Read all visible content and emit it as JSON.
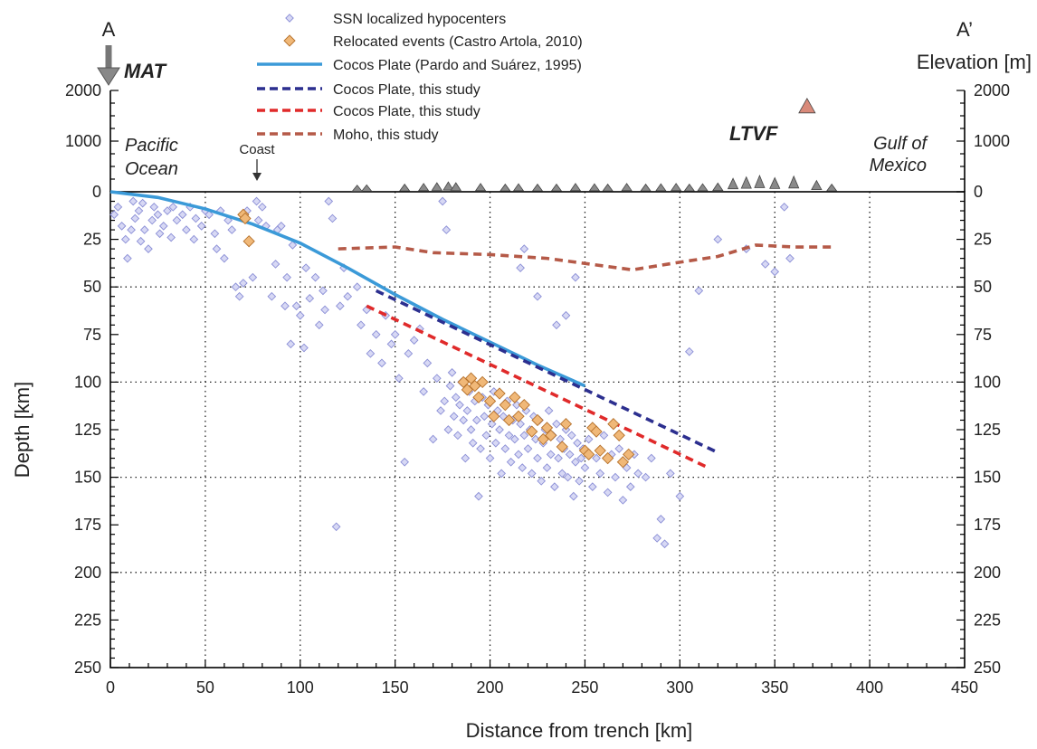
{
  "chart_data": {
    "type": "scatter",
    "xlabel": "Distance from trench [km]",
    "ylabel": "Depth [km]",
    "ylabel_right": "Elevation [m]",
    "xlim": [
      0,
      450
    ],
    "ylim": [
      0,
      250
    ],
    "elev_lim": [
      0,
      2000
    ],
    "x_ticks": [
      "0",
      "50",
      "100",
      "150",
      "200",
      "250",
      "300",
      "350",
      "400",
      "450"
    ],
    "y_ticks": [
      "0",
      "25",
      "50",
      "75",
      "100",
      "125",
      "150",
      "175",
      "200",
      "225",
      "250"
    ],
    "elev_ticks": [
      "0",
      "1000",
      "2000"
    ],
    "grid": true,
    "legend": [
      {
        "label": "SSN localized hypocenters",
        "marker": "diamond",
        "color": "#9a9ee0"
      },
      {
        "label": "Relocated events (Castro Artola, 2010)",
        "marker": "diamond",
        "color": "#e8a04a"
      },
      {
        "label": "Cocos Plate (Pardo and Suárez, 1995)",
        "marker": "line",
        "color": "#3b9ad8"
      },
      {
        "label": "Cocos Plate, this study",
        "marker": "dashed",
        "color": "#2c2f8f"
      },
      {
        "label": "Cocos Plate, this study",
        "marker": "dashed",
        "color": "#e02a2a"
      },
      {
        "label": "Moho, this study",
        "marker": "dashed",
        "color": "#b55a48"
      }
    ],
    "annotations": {
      "section_start": "A",
      "section_end": "A’",
      "mat": "MAT",
      "pacific": [
        "Pacific",
        "Ocean"
      ],
      "coast": "Coast",
      "ltvf": "LTVF",
      "gulf": [
        "Gulf of",
        "Mexico"
      ]
    },
    "series": [
      {
        "name": "Cocos Plate (Pardo and Suárez, 1995)",
        "color": "#3b9ad8",
        "style": "solid",
        "x": [
          0,
          25,
          50,
          75,
          100,
          125,
          150,
          175,
          200,
          225,
          250
        ],
        "y": [
          0,
          3,
          9,
          17,
          27,
          40,
          54,
          67,
          79,
          91,
          102
        ]
      },
      {
        "name": "Cocos Plate, this study",
        "color": "#2c2f8f",
        "style": "dashed",
        "x": [
          140,
          320
        ],
        "y": [
          52,
          137
        ]
      },
      {
        "name": "Cocos Plate, this study",
        "color": "#e02a2a",
        "style": "dashed",
        "x": [
          135,
          315
        ],
        "y": [
          60,
          145
        ]
      },
      {
        "name": "Moho, this study",
        "color": "#b55a48",
        "style": "dashed",
        "x": [
          120,
          150,
          170,
          200,
          230,
          260,
          275,
          300,
          320,
          340,
          360,
          380
        ],
        "y": [
          30,
          29,
          32,
          33,
          35,
          39,
          41,
          37,
          34,
          28,
          29,
          29
        ]
      }
    ],
    "ssn_hypocenters": [
      [
        2,
        12
      ],
      [
        4,
        8
      ],
      [
        6,
        18
      ],
      [
        8,
        25
      ],
      [
        9,
        35
      ],
      [
        11,
        20
      ],
      [
        12,
        5
      ],
      [
        13,
        14
      ],
      [
        15,
        10
      ],
      [
        16,
        26
      ],
      [
        17,
        6
      ],
      [
        18,
        20
      ],
      [
        20,
        30
      ],
      [
        22,
        15
      ],
      [
        23,
        8
      ],
      [
        25,
        12
      ],
      [
        26,
        22
      ],
      [
        28,
        18
      ],
      [
        30,
        10
      ],
      [
        32,
        24
      ],
      [
        33,
        8
      ],
      [
        35,
        15
      ],
      [
        38,
        12
      ],
      [
        40,
        20
      ],
      [
        42,
        8
      ],
      [
        44,
        25
      ],
      [
        45,
        14
      ],
      [
        48,
        18
      ],
      [
        50,
        10
      ],
      [
        52,
        12
      ],
      [
        55,
        22
      ],
      [
        56,
        30
      ],
      [
        58,
        10
      ],
      [
        60,
        35
      ],
      [
        62,
        15
      ],
      [
        64,
        20
      ],
      [
        66,
        50
      ],
      [
        68,
        55
      ],
      [
        70,
        48
      ],
      [
        72,
        10
      ],
      [
        75,
        45
      ],
      [
        77,
        5
      ],
      [
        78,
        15
      ],
      [
        80,
        8
      ],
      [
        82,
        18
      ],
      [
        85,
        55
      ],
      [
        87,
        38
      ],
      [
        88,
        20
      ],
      [
        90,
        18
      ],
      [
        92,
        60
      ],
      [
        93,
        45
      ],
      [
        95,
        80
      ],
      [
        96,
        28
      ],
      [
        98,
        60
      ],
      [
        100,
        65
      ],
      [
        102,
        82
      ],
      [
        103,
        40
      ],
      [
        105,
        56
      ],
      [
        108,
        45
      ],
      [
        110,
        70
      ],
      [
        112,
        52
      ],
      [
        113,
        62
      ],
      [
        115,
        5
      ],
      [
        117,
        14
      ],
      [
        119,
        176
      ],
      [
        121,
        60
      ],
      [
        123,
        40
      ],
      [
        125,
        55
      ],
      [
        130,
        50
      ],
      [
        132,
        70
      ],
      [
        135,
        62
      ],
      [
        137,
        85
      ],
      [
        140,
        75
      ],
      [
        143,
        90
      ],
      [
        145,
        65
      ],
      [
        148,
        80
      ],
      [
        150,
        75
      ],
      [
        152,
        98
      ],
      [
        155,
        142
      ],
      [
        157,
        85
      ],
      [
        160,
        78
      ],
      [
        163,
        72
      ],
      [
        165,
        105
      ],
      [
        167,
        90
      ],
      [
        170,
        130
      ],
      [
        172,
        98
      ],
      [
        174,
        115
      ],
      [
        175,
        5
      ],
      [
        176,
        110
      ],
      [
        177,
        20
      ],
      [
        178,
        125
      ],
      [
        179,
        102
      ],
      [
        180,
        95
      ],
      [
        181,
        118
      ],
      [
        182,
        108
      ],
      [
        183,
        128
      ],
      [
        184,
        112
      ],
      [
        185,
        100
      ],
      [
        186,
        120
      ],
      [
        187,
        140
      ],
      [
        188,
        115
      ],
      [
        189,
        105
      ],
      [
        190,
        125
      ],
      [
        191,
        132
      ],
      [
        192,
        110
      ],
      [
        193,
        120
      ],
      [
        194,
        160
      ],
      [
        195,
        135
      ],
      [
        196,
        108
      ],
      [
        197,
        118
      ],
      [
        198,
        128
      ],
      [
        199,
        112
      ],
      [
        200,
        140
      ],
      [
        201,
        122
      ],
      [
        202,
        105
      ],
      [
        203,
        132
      ],
      [
        204,
        115
      ],
      [
        205,
        125
      ],
      [
        206,
        148
      ],
      [
        207,
        118
      ],
      [
        208,
        135
      ],
      [
        209,
        110
      ],
      [
        210,
        128
      ],
      [
        211,
        142
      ],
      [
        212,
        120
      ],
      [
        213,
        130
      ],
      [
        214,
        112
      ],
      [
        215,
        138
      ],
      [
        216,
        122
      ],
      [
        217,
        145
      ],
      [
        218,
        128
      ],
      [
        219,
        115
      ],
      [
        220,
        135
      ],
      [
        221,
        125
      ],
      [
        222,
        148
      ],
      [
        223,
        118
      ],
      [
        224,
        130
      ],
      [
        225,
        140
      ],
      [
        226,
        120
      ],
      [
        227,
        152
      ],
      [
        228,
        132
      ],
      [
        229,
        125
      ],
      [
        230,
        145
      ],
      [
        231,
        115
      ],
      [
        232,
        138
      ],
      [
        233,
        128
      ],
      [
        234,
        155
      ],
      [
        235,
        122
      ],
      [
        236,
        140
      ],
      [
        237,
        130
      ],
      [
        238,
        148
      ],
      [
        239,
        135
      ],
      [
        240,
        125
      ],
      [
        241,
        150
      ],
      [
        242,
        138
      ],
      [
        243,
        128
      ],
      [
        244,
        160
      ],
      [
        245,
        142
      ],
      [
        246,
        132
      ],
      [
        247,
        152
      ],
      [
        248,
        140
      ],
      [
        249,
        135
      ],
      [
        250,
        145
      ],
      [
        252,
        130
      ],
      [
        254,
        155
      ],
      [
        256,
        140
      ],
      [
        258,
        148
      ],
      [
        260,
        128
      ],
      [
        262,
        158
      ],
      [
        264,
        138
      ],
      [
        266,
        150
      ],
      [
        268,
        135
      ],
      [
        270,
        162
      ],
      [
        272,
        145
      ],
      [
        274,
        155
      ],
      [
        276,
        138
      ],
      [
        278,
        148
      ],
      [
        282,
        150
      ],
      [
        285,
        140
      ],
      [
        288,
        182
      ],
      [
        290,
        172
      ],
      [
        292,
        185
      ],
      [
        295,
        148
      ],
      [
        300,
        160
      ],
      [
        305,
        84
      ],
      [
        310,
        52
      ],
      [
        320,
        25
      ],
      [
        335,
        30
      ],
      [
        345,
        38
      ],
      [
        350,
        42
      ],
      [
        355,
        8
      ],
      [
        358,
        35
      ],
      [
        218,
        30
      ],
      [
        216,
        40
      ],
      [
        225,
        55
      ],
      [
        235,
        70
      ],
      [
        240,
        65
      ],
      [
        245,
        45
      ]
    ],
    "relocated_events": [
      [
        70,
        12
      ],
      [
        71,
        14
      ],
      [
        73,
        26
      ],
      [
        186,
        100
      ],
      [
        188,
        104
      ],
      [
        190,
        98
      ],
      [
        192,
        102
      ],
      [
        194,
        108
      ],
      [
        196,
        100
      ],
      [
        200,
        110
      ],
      [
        202,
        118
      ],
      [
        205,
        106
      ],
      [
        208,
        112
      ],
      [
        210,
        120
      ],
      [
        213,
        108
      ],
      [
        215,
        118
      ],
      [
        218,
        112
      ],
      [
        222,
        126
      ],
      [
        225,
        120
      ],
      [
        228,
        130
      ],
      [
        230,
        124
      ],
      [
        232,
        128
      ],
      [
        238,
        134
      ],
      [
        240,
        122
      ],
      [
        250,
        136
      ],
      [
        252,
        138
      ],
      [
        254,
        124
      ],
      [
        256,
        126
      ],
      [
        258,
        136
      ],
      [
        262,
        140
      ],
      [
        265,
        122
      ],
      [
        268,
        128
      ],
      [
        270,
        142
      ],
      [
        273,
        138
      ]
    ],
    "volcanoes": [
      [
        130,
        0.15
      ],
      [
        135,
        0.2
      ],
      [
        155,
        0.3
      ],
      [
        165,
        0.4
      ],
      [
        172,
        0.5
      ],
      [
        178,
        0.6
      ],
      [
        182,
        0.5
      ],
      [
        195,
        0.4
      ],
      [
        208,
        0.3
      ],
      [
        215,
        0.35
      ],
      [
        225,
        0.3
      ],
      [
        235,
        0.3
      ],
      [
        245,
        0.4
      ],
      [
        255,
        0.35
      ],
      [
        262,
        0.3
      ],
      [
        272,
        0.4
      ],
      [
        282,
        0.3
      ],
      [
        290,
        0.35
      ],
      [
        298,
        0.4
      ],
      [
        305,
        0.3
      ],
      [
        312,
        0.35
      ],
      [
        320,
        0.45
      ],
      [
        328,
        1.1
      ],
      [
        335,
        1.3
      ],
      [
        342,
        1.5
      ],
      [
        350,
        1.2
      ],
      [
        360,
        1.4
      ],
      [
        372,
        0.8
      ],
      [
        380,
        0.3
      ]
    ],
    "large_volcano": [
      367,
      1700
    ]
  }
}
